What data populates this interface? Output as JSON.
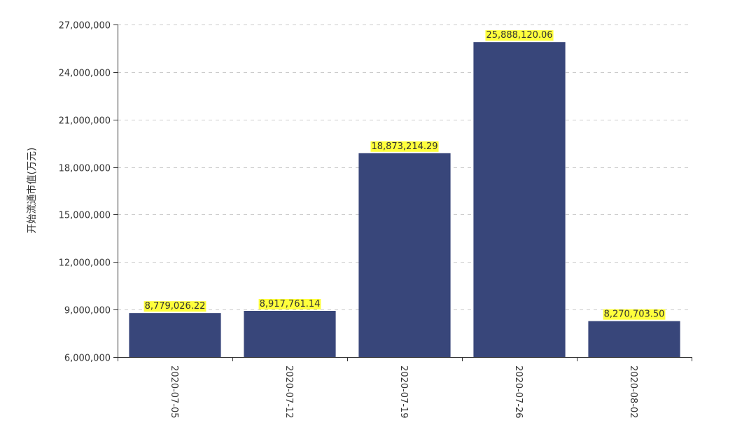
{
  "colors": {
    "bar": "#38467a",
    "label_highlight": "#ffff3c",
    "axis": "#333333",
    "grid": "#cccccc",
    "text": "#333333"
  },
  "chart_data": {
    "type": "bar",
    "title": "",
    "xlabel": "",
    "ylabel": "开始流通市值(万元)",
    "categories": [
      "2020-07-05",
      "2020-07-12",
      "2020-07-19",
      "2020-07-26",
      "2020-08-02"
    ],
    "values": [
      8779026.22,
      8917761.14,
      18873214.29,
      25888120.06,
      8270703.5
    ],
    "value_labels": [
      "8,779,026.22",
      "8,917,761.14",
      "18,873,214.29",
      "25,888,120.06",
      "8,270,703.50"
    ],
    "ylim": [
      6000000,
      27000000
    ],
    "yticks": [
      6000000,
      9000000,
      12000000,
      15000000,
      18000000,
      21000000,
      24000000,
      27000000
    ],
    "ytick_labels": [
      "6,000,000",
      "9,000,000",
      "12,000,000",
      "15,000,000",
      "18,000,000",
      "21,000,000",
      "24,000,000",
      "27,000,000"
    ],
    "grid": "horizontal dashed",
    "legend": "none"
  }
}
